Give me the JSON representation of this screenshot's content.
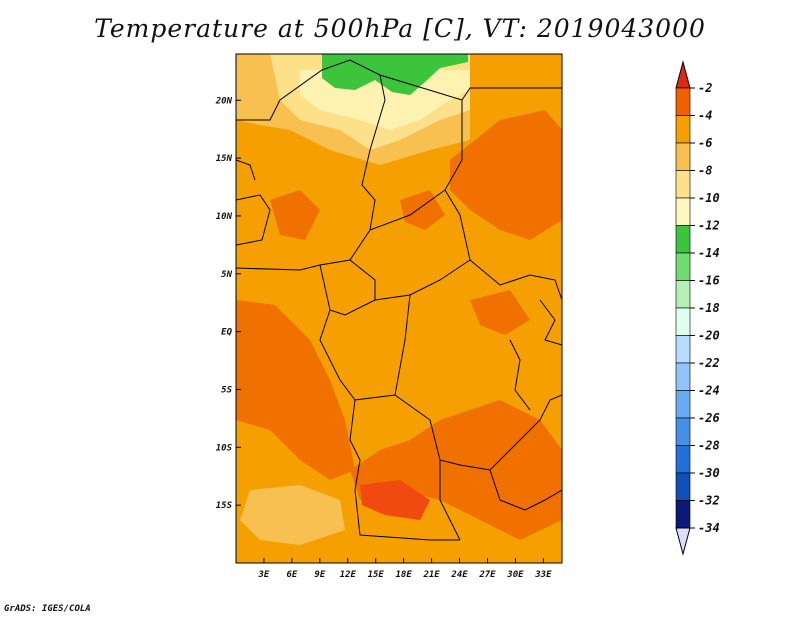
{
  "title": "Temperature at 500hPa [C], VT: 2019043000",
  "credit": "GrADS: IGES/COLA",
  "map": {
    "lon_range": [
      0,
      35
    ],
    "lat_range": [
      -20,
      24
    ],
    "x_ticks": [
      {
        "value": 3,
        "label": "3E"
      },
      {
        "value": 6,
        "label": "6E"
      },
      {
        "value": 9,
        "label": "9E"
      },
      {
        "value": 12,
        "label": "12E"
      },
      {
        "value": 15,
        "label": "15E"
      },
      {
        "value": 18,
        "label": "18E"
      },
      {
        "value": 21,
        "label": "21E"
      },
      {
        "value": 24,
        "label": "24E"
      },
      {
        "value": 27,
        "label": "27E"
      },
      {
        "value": 30,
        "label": "30E"
      },
      {
        "value": 33,
        "label": "33E"
      }
    ],
    "y_ticks": [
      {
        "value": 20,
        "label": "20N"
      },
      {
        "value": 15,
        "label": "15N"
      },
      {
        "value": 10,
        "label": "10N"
      },
      {
        "value": 5,
        "label": "5N"
      },
      {
        "value": 0,
        "label": "EQ"
      },
      {
        "value": -5,
        "label": "5S"
      },
      {
        "value": -10,
        "label": "10S"
      },
      {
        "value": -15,
        "label": "15S"
      }
    ],
    "colors": {
      "orange": "#f5a000",
      "dark_orange": "#f07000",
      "red_orange": "#f04a10",
      "light_orange": "#f8c050",
      "yellow": "#fce08a",
      "pale_yellow": "#fdf2b0",
      "green": "#3cc43c",
      "border": "#000000"
    }
  },
  "colorbar": {
    "labels": [
      "-2",
      "-4",
      "-6",
      "-8",
      "-10",
      "-12",
      "-14",
      "-16",
      "-18",
      "-20",
      "-22",
      "-24",
      "-26",
      "-28",
      "-30",
      "-32",
      "-34"
    ],
    "colors": [
      "#e02810",
      "#f06000",
      "#f5a000",
      "#f8c050",
      "#fce08a",
      "#fdf7c0",
      "#3cc43c",
      "#70dc70",
      "#b4f0b4",
      "#e0fff0",
      "#b8dcff",
      "#90c4f8",
      "#6aaaf2",
      "#4690e8",
      "#2270d8",
      "#1050b8",
      "#0a1a78",
      "#dcdcff"
    ]
  }
}
